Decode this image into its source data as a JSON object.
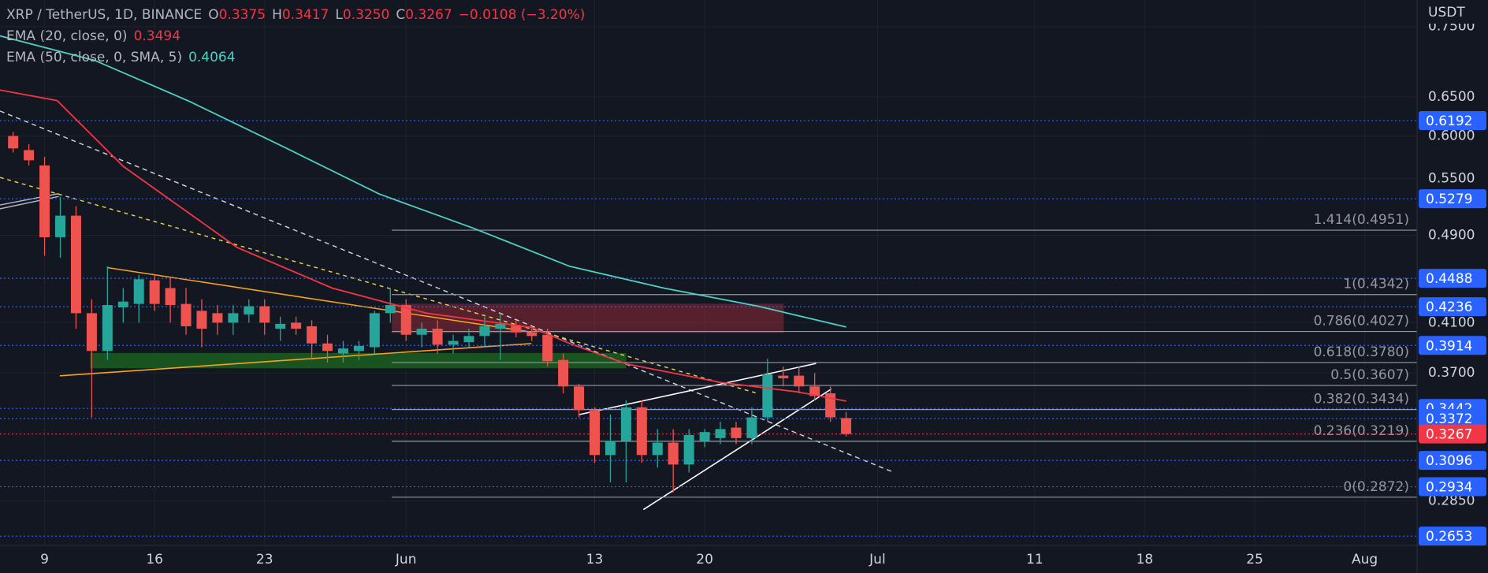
{
  "chart_data": {
    "type": "candlestick",
    "header": {
      "symbol": "XRP / TetherUS, 1D, BINANCE",
      "ohlc": [
        {
          "key": "O",
          "value": "0.3375"
        },
        {
          "key": "H",
          "value": "0.3417"
        },
        {
          "key": "L",
          "value": "0.3250"
        },
        {
          "key": "C",
          "value": "0.3267"
        }
      ],
      "change": "−0.0108 (−3.20%)"
    },
    "axis_unit": "USDT",
    "up_color": "#26a69a",
    "down_color": "#ef5350",
    "x": [
      0,
      1,
      2,
      3,
      4,
      5,
      6,
      7,
      8,
      9,
      10,
      11,
      12,
      13,
      14,
      15,
      16,
      17,
      18,
      19,
      20,
      21,
      22,
      23,
      24,
      25,
      26,
      27,
      28,
      29,
      30,
      31,
      32,
      33,
      34,
      35,
      36,
      37,
      38,
      39,
      40,
      41,
      42,
      43,
      44,
      45,
      46,
      47,
      48,
      49,
      50,
      51,
      52,
      53
    ],
    "open": [
      0.6,
      0.583,
      0.565,
      0.488,
      0.51,
      0.418,
      0.387,
      0.423,
      0.426,
      0.447,
      0.44,
      0.426,
      0.42,
      0.418,
      0.41,
      0.417,
      0.424,
      0.405,
      0.41,
      0.407,
      0.393,
      0.385,
      0.387,
      0.39,
      0.418,
      0.425,
      0.4,
      0.405,
      0.392,
      0.394,
      0.399,
      0.405,
      0.408,
      0.402,
      0.4,
      0.38,
      0.36,
      0.343,
      0.313,
      0.322,
      0.345,
      0.313,
      0.321,
      0.307,
      0.322,
      0.324,
      0.331,
      0.324,
      0.338,
      0.368,
      0.368,
      0.36,
      0.355,
      0.3375
    ],
    "high": [
      0.605,
      0.59,
      0.575,
      0.53,
      0.52,
      0.43,
      0.46,
      0.44,
      0.452,
      0.452,
      0.45,
      0.44,
      0.43,
      0.425,
      0.425,
      0.43,
      0.43,
      0.415,
      0.415,
      0.412,
      0.4,
      0.395,
      0.395,
      0.42,
      0.44,
      0.43,
      0.41,
      0.412,
      0.4,
      0.405,
      0.415,
      0.418,
      0.412,
      0.405,
      0.405,
      0.385,
      0.362,
      0.345,
      0.34,
      0.35,
      0.35,
      0.33,
      0.33,
      0.33,
      0.33,
      0.335,
      0.335,
      0.345,
      0.381,
      0.375,
      0.375,
      0.37,
      0.36,
      0.3417
    ],
    "low": [
      0.58,
      0.565,
      0.47,
      0.468,
      0.405,
      0.338,
      0.38,
      0.41,
      0.41,
      0.42,
      0.41,
      0.4,
      0.39,
      0.4,
      0.4,
      0.41,
      0.4,
      0.395,
      0.4,
      0.38,
      0.378,
      0.378,
      0.38,
      0.385,
      0.41,
      0.395,
      0.39,
      0.385,
      0.385,
      0.39,
      0.39,
      0.38,
      0.398,
      0.395,
      0.375,
      0.355,
      0.338,
      0.308,
      0.296,
      0.296,
      0.308,
      0.305,
      0.29,
      0.302,
      0.318,
      0.32,
      0.32,
      0.32,
      0.335,
      0.36,
      0.355,
      0.35,
      0.335,
      0.325
    ],
    "close": [
      0.585,
      0.571,
      0.488,
      0.51,
      0.418,
      0.387,
      0.425,
      0.428,
      0.448,
      0.426,
      0.425,
      0.407,
      0.405,
      0.41,
      0.418,
      0.424,
      0.41,
      0.409,
      0.405,
      0.393,
      0.387,
      0.389,
      0.391,
      0.418,
      0.425,
      0.4,
      0.405,
      0.392,
      0.395,
      0.399,
      0.407,
      0.409,
      0.402,
      0.399,
      0.379,
      0.36,
      0.343,
      0.313,
      0.322,
      0.345,
      0.313,
      0.321,
      0.307,
      0.326,
      0.328,
      0.33,
      0.324,
      0.338,
      0.369,
      0.366,
      0.36,
      0.353,
      0.338,
      0.3267
    ],
    "indicators": [
      {
        "name": "EMA (20, close, 0)",
        "color": "#f23645",
        "x": [
          -0.84,
          2.8,
          7,
          14.25,
          20.3,
          26.3,
          33,
          35.4,
          39,
          45,
          49.9,
          53
        ],
        "values": [
          0.659,
          0.645,
          0.564,
          0.478,
          0.44,
          0.418,
          0.406,
          0.393,
          0.377,
          0.363,
          0.356,
          0.3494
        ]
      },
      {
        "name": "EMA (50, close, 0, SMA, 5)",
        "color": "#4dd0c4",
        "x": [
          -0.84,
          5.2,
          11.2,
          17.3,
          23.3,
          29.3,
          35.4,
          41.4,
          47.4,
          53
        ],
        "values": [
          0.736,
          0.7,
          0.644,
          0.586,
          0.533,
          0.497,
          0.46,
          0.44,
          0.424,
          0.4064
        ]
      }
    ],
    "fib_levels": [
      {
        "value": 0.4951,
        "label": "1.414(0.4951)"
      },
      {
        "value": 0.4342,
        "label": "1(0.4342)"
      },
      {
        "value": 0.4027,
        "label": "0.786(0.4027)"
      },
      {
        "value": 0.378,
        "label": "0.618(0.3780)"
      },
      {
        "value": 0.3607,
        "label": "0.5(0.3607)"
      },
      {
        "value": 0.3434,
        "label": "0.382(0.3434)"
      },
      {
        "value": 0.3219,
        "label": "0.236(0.3219)"
      },
      {
        "value": 0.2872,
        "label": "0(0.2872)"
      }
    ],
    "price_levels": [
      {
        "value": 0.6192,
        "color": "#2962ff"
      },
      {
        "value": 0.5279,
        "color": "#2962ff"
      },
      {
        "value": 0.4488,
        "color": "#2962ff"
      },
      {
        "value": 0.4236,
        "color": "#2962ff"
      },
      {
        "value": 0.3914,
        "color": "#2962ff"
      },
      {
        "value": 0.3442,
        "color": "#2962ff"
      },
      {
        "value": 0.3372,
        "color": "#2962ff"
      },
      {
        "value": 0.3267,
        "color": "#f23645"
      },
      {
        "value": 0.3096,
        "color": "#2962ff"
      },
      {
        "value": 0.2934,
        "color": "#2962ff"
      },
      {
        "value": 0.2653,
        "color": "#2962ff"
      }
    ],
    "ylim": [
      0.2603,
      0.7918
    ],
    "log_scale": true,
    "yticks": [
      {
        "value": 0.75,
        "label": "0.7500"
      },
      {
        "value": 0.65,
        "label": "0.6500"
      },
      {
        "value": 0.6,
        "label": "0.6000"
      },
      {
        "value": 0.55,
        "label": "0.5500"
      },
      {
        "value": 0.49,
        "label": "0.4900"
      },
      {
        "value": 0.41,
        "label": "0.4100"
      },
      {
        "value": 0.37,
        "label": "0.3700"
      },
      {
        "value": 0.285,
        "label": "0.2850"
      }
    ],
    "xlim": [
      -0.837,
      89.33
    ],
    "xticks": [
      {
        "value": 2,
        "label": "9"
      },
      {
        "value": 9,
        "label": "16"
      },
      {
        "value": 16,
        "label": "23"
      },
      {
        "value": 25,
        "label": "Jun"
      },
      {
        "value": 37,
        "label": "13"
      },
      {
        "value": 44,
        "label": "20"
      },
      {
        "value": 55,
        "label": "Jul"
      },
      {
        "value": 65,
        "label": "11"
      },
      {
        "value": 72,
        "label": "18"
      },
      {
        "value": 79,
        "label": "25"
      },
      {
        "value": 86,
        "label": "Aug"
      }
    ],
    "grid": true
  }
}
